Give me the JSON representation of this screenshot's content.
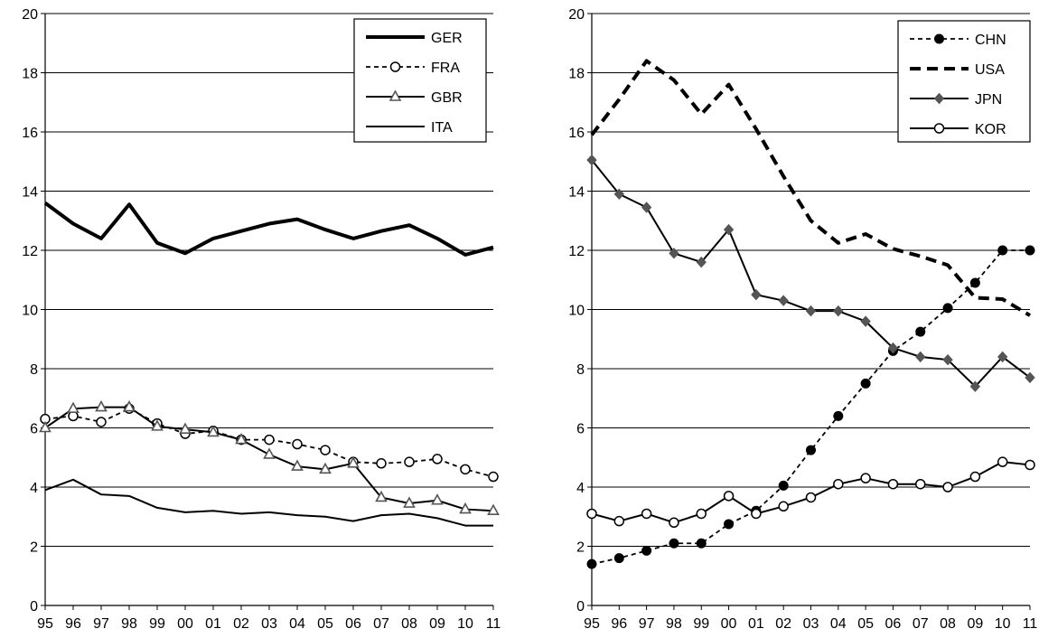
{
  "chart_data": [
    {
      "type": "line",
      "title": "",
      "xlabel": "",
      "ylabel": "",
      "ylim": [
        0,
        20
      ],
      "yticks": [
        "0",
        "2",
        "4",
        "6",
        "8",
        "10",
        "12",
        "14",
        "16",
        "18",
        "20"
      ],
      "categories": [
        "95",
        "96",
        "97",
        "98",
        "99",
        "00",
        "01",
        "02",
        "03",
        "04",
        "05",
        "06",
        "07",
        "08",
        "09",
        "10",
        "11"
      ],
      "grid": "horizontal",
      "legend_position": "top-right",
      "series": [
        {
          "name": "GER",
          "style": "thick",
          "marker": "none",
          "values": [
            13.6,
            12.9,
            12.4,
            13.55,
            12.25,
            11.9,
            12.4,
            12.65,
            12.9,
            13.05,
            12.7,
            12.4,
            12.65,
            12.85,
            12.4,
            11.85,
            12.1
          ]
        },
        {
          "name": "FRA",
          "style": "dashed",
          "marker": "open-circle",
          "values": [
            6.3,
            6.4,
            6.2,
            6.65,
            6.15,
            5.8,
            5.9,
            5.6,
            5.6,
            5.45,
            5.25,
            4.85,
            4.8,
            4.85,
            4.95,
            4.6,
            4.35
          ]
        },
        {
          "name": "GBR",
          "style": "solid",
          "marker": "open-triangle",
          "values": [
            6.0,
            6.65,
            6.7,
            6.7,
            6.05,
            5.95,
            5.85,
            5.6,
            5.1,
            4.7,
            4.6,
            4.8,
            3.65,
            3.45,
            3.55,
            3.25,
            3.2
          ]
        },
        {
          "name": "ITA",
          "style": "thin",
          "marker": "none",
          "values": [
            3.9,
            4.25,
            3.75,
            3.7,
            3.3,
            3.15,
            3.2,
            3.1,
            3.15,
            3.05,
            3.0,
            2.85,
            3.05,
            3.1,
            2.95,
            2.7,
            2.7
          ]
        }
      ]
    },
    {
      "type": "line",
      "title": "",
      "xlabel": "",
      "ylabel": "",
      "ylim": [
        0,
        20
      ],
      "yticks": [
        "0",
        "2",
        "4",
        "6",
        "8",
        "10",
        "12",
        "14",
        "16",
        "18",
        "20"
      ],
      "categories": [
        "95",
        "96",
        "97",
        "98",
        "99",
        "00",
        "01",
        "02",
        "03",
        "04",
        "05",
        "06",
        "07",
        "08",
        "09",
        "10",
        "11"
      ],
      "grid": "horizontal",
      "legend_position": "top-right",
      "series": [
        {
          "name": "CHN",
          "style": "dashed",
          "marker": "filled-circle",
          "values": [
            1.4,
            1.6,
            1.85,
            2.1,
            2.1,
            2.75,
            3.2,
            4.05,
            5.25,
            6.4,
            7.5,
            8.6,
            9.25,
            10.05,
            10.9,
            12.0,
            12.0
          ]
        },
        {
          "name": "USA",
          "style": "thick-dashed",
          "marker": "none",
          "values": [
            15.9,
            17.1,
            18.4,
            17.75,
            16.6,
            17.6,
            16.1,
            14.5,
            13.0,
            12.25,
            12.55,
            12.05,
            11.8,
            11.5,
            10.4,
            10.35,
            9.8
          ]
        },
        {
          "name": "JPN",
          "style": "solid",
          "marker": "filled-diamond",
          "values": [
            15.05,
            13.9,
            13.45,
            11.9,
            11.6,
            12.7,
            10.5,
            10.3,
            9.95,
            9.95,
            9.6,
            8.7,
            8.4,
            8.3,
            7.4,
            8.4,
            7.7
          ]
        },
        {
          "name": "KOR",
          "style": "solid",
          "marker": "open-circle",
          "values": [
            3.1,
            2.85,
            3.1,
            2.8,
            3.1,
            3.7,
            3.1,
            3.35,
            3.65,
            4.1,
            4.3,
            4.1,
            4.1,
            4.0,
            4.35,
            4.85,
            4.75
          ]
        }
      ]
    }
  ]
}
